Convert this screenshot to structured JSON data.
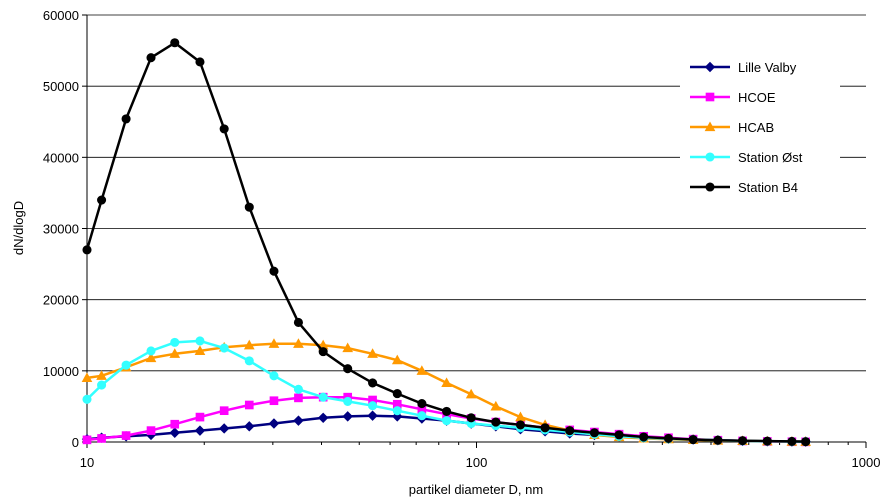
{
  "chart_data": {
    "type": "line",
    "title": "",
    "xlabel": "partikel diameter D, nm",
    "ylabel": "dN/dlogD",
    "xscale": "log",
    "xlim": [
      10,
      1000
    ],
    "ylim": [
      0,
      60000
    ],
    "x_ticks": [
      "10",
      "100",
      "1000"
    ],
    "y_ticks": [
      "0",
      "10000",
      "20000",
      "30000",
      "40000",
      "50000",
      "60000"
    ],
    "grid": "horizontal",
    "legend_position": "right",
    "series": [
      {
        "name": "Lille Valby",
        "color": "#000080",
        "marker": "diamond",
        "x": [
          10,
          10.9,
          12.6,
          14.6,
          16.8,
          19.5,
          22.5,
          26.1,
          30.2,
          34.9,
          40.4,
          46.7,
          54.1,
          62.6,
          72.4,
          83.8,
          96.9,
          112.1,
          129.7,
          150,
          173.5,
          200.8,
          232.3,
          268.7,
          311.1,
          359.9,
          416.6,
          482.1,
          557.9,
          645.3,
          700
        ],
        "y": [
          400,
          600,
          800,
          1000,
          1300,
          1600,
          1900,
          2200,
          2600,
          3000,
          3400,
          3600,
          3700,
          3600,
          3300,
          3000,
          2600,
          2200,
          1800,
          1500,
          1200,
          1000,
          800,
          600,
          450,
          350,
          250,
          150,
          100,
          60,
          50
        ]
      },
      {
        "name": "HCOE",
        "color": "#FF00FF",
        "marker": "square",
        "x": [
          10,
          10.9,
          12.6,
          14.6,
          16.8,
          19.5,
          22.5,
          26.1,
          30.2,
          34.9,
          40.4,
          46.7,
          54.1,
          62.6,
          72.4,
          83.8,
          96.9,
          112.1,
          129.7,
          150,
          173.5,
          200.8,
          232.3,
          268.7,
          311.1,
          359.9,
          416.6,
          482.1,
          557.9,
          645.3,
          700
        ],
        "y": [
          300,
          500,
          900,
          1600,
          2500,
          3500,
          4400,
          5200,
          5800,
          6200,
          6300,
          6300,
          5900,
          5300,
          4600,
          3900,
          3300,
          2800,
          2400,
          2000,
          1700,
          1400,
          1100,
          800,
          600,
          400,
          250,
          150,
          80,
          40,
          20
        ]
      },
      {
        "name": "HCAB",
        "color": "#FF9900",
        "marker": "triangle",
        "x": [
          10,
          10.9,
          12.6,
          14.6,
          16.8,
          19.5,
          22.5,
          26.1,
          30.2,
          34.9,
          40.4,
          46.7,
          54.1,
          62.6,
          72.4,
          83.8,
          96.9,
          112.1,
          129.7,
          150,
          173.5,
          200.8,
          232.3,
          268.7,
          311.1,
          359.9,
          416.6,
          482.1,
          557.9,
          645.3,
          700
        ],
        "y": [
          9000,
          9300,
          10500,
          11800,
          12400,
          12800,
          13300,
          13600,
          13800,
          13800,
          13600,
          13200,
          12400,
          11500,
          10000,
          8300,
          6700,
          5000,
          3500,
          2400,
          1600,
          1000,
          700,
          500,
          400,
          300,
          200,
          150,
          100,
          50,
          30
        ]
      },
      {
        "name": "Station Øst",
        "color": "#33FFFF",
        "marker": "circle",
        "x": [
          10,
          10.9,
          12.6,
          14.6,
          16.8,
          19.5,
          22.5,
          26.1,
          30.2,
          34.9,
          40.4,
          46.7,
          54.1,
          62.6,
          72.4,
          83.8,
          96.9,
          112.1,
          129.7,
          150,
          173.5,
          200.8,
          232.3,
          268.7,
          311.1,
          359.9,
          416.6,
          482.1,
          557.9,
          645.3,
          700
        ],
        "y": [
          6000,
          8000,
          10800,
          12800,
          14000,
          14200,
          13200,
          11400,
          9300,
          7400,
          6300,
          5700,
          5100,
          4400,
          3700,
          3000,
          2600,
          2300,
          2000,
          1700,
          1400,
          1100,
          800,
          600,
          450,
          350,
          250,
          150,
          100,
          60,
          40
        ]
      },
      {
        "name": "Station B4",
        "color": "#000000",
        "marker": "circle",
        "x": [
          10,
          10.9,
          12.6,
          14.6,
          16.8,
          19.5,
          22.5,
          26.1,
          30.2,
          34.9,
          40.4,
          46.7,
          54.1,
          62.6,
          72.4,
          83.8,
          96.9,
          112.1,
          129.7,
          150,
          173.5,
          200.8,
          232.3,
          268.7,
          311.1,
          359.9,
          416.6,
          482.1,
          557.9,
          645.3,
          700
        ],
        "y": [
          27000,
          34000,
          45400,
          54000,
          56100,
          53400,
          44000,
          33000,
          24000,
          16800,
          12700,
          10300,
          8300,
          6800,
          5400,
          4300,
          3400,
          2800,
          2400,
          2000,
          1600,
          1300,
          1000,
          700,
          500,
          350,
          250,
          180,
          120,
          80,
          50
        ]
      }
    ]
  }
}
